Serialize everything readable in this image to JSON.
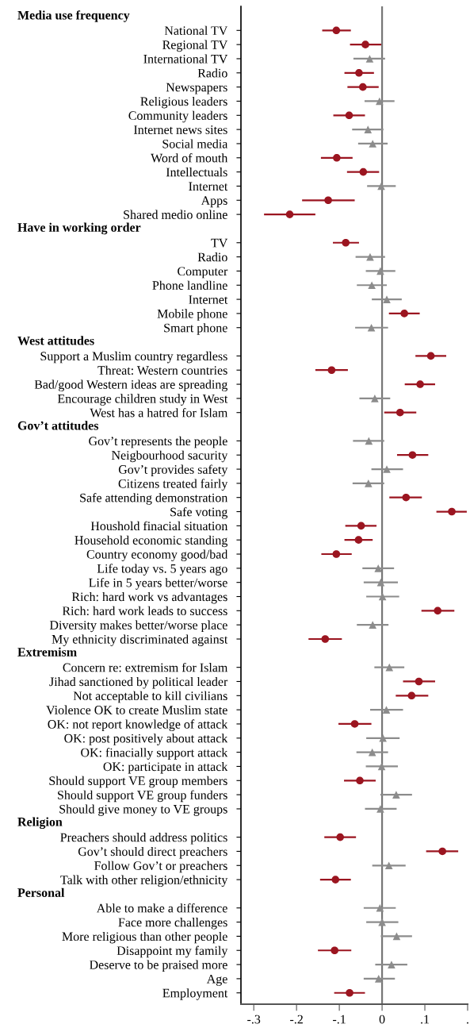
{
  "chart_data": {
    "type": "scatter",
    "orientation": "horizontal",
    "annotations": [
      "Media use frequency",
      "Have in working order",
      "West attitudes",
      "Gov’t attitudes",
      "Extremism",
      "Religion",
      "Personal"
    ],
    "categories": [
      null,
      "National TV",
      "Regional TV",
      "International TV",
      "Radio",
      "Newspapers",
      "Religious leaders",
      "Community leaders",
      "Internet news sites",
      "Social media",
      "Word of mouth",
      "Intellectuals",
      "Internet",
      "Apps",
      "Shared medio online",
      null,
      "TV",
      "Radio",
      "Computer",
      "Phone landline",
      "Internet",
      "Mobile phone",
      "Smart phone",
      null,
      "Support a Muslim country regardless",
      "Threat: Western countries",
      "Bad/good Western ideas are spreading",
      "Encourage children study in West",
      "West has a hatred for Islam",
      null,
      "Gov’t represents the people",
      "Neigbourhood sacurity",
      "Gov’t provides safety",
      "Citizens treated fairly",
      "Safe attending demonstration",
      "Safe voting",
      "Houshold finacial situation",
      "Household economic standing",
      "Country economy good/bad",
      "Life today vs. 5 years ago",
      "Life in 5 years better/worse",
      "Rich: hard work vs advantages",
      "Rich: hard work leads to success",
      "Diversity makes better/worse place",
      "My ethnicity discriminated against",
      null,
      "Concern re: extremism for Islam",
      "Jihad sanctioned by political leader",
      "Not acceptable to kill civilians",
      "Violence OK to create Muslim state",
      "OK: not report knowledge of attack",
      "OK: post positively about attack",
      "OK: finacially support attack",
      "OK: participate in attack",
      "Should support VE group members",
      "Should support VE group funders",
      "Should give money to VE groups",
      null,
      "Preachers should address politics",
      "Gov’t should direct preachers",
      "Follow Gov’t or preachers",
      "Talk with other religion/ethnicity",
      null,
      "Able to make a difference",
      "Face more challenges",
      "More religious than other people",
      "Disappoint my family",
      "Deserve to be praised more",
      "Age",
      "Employment"
    ],
    "series": [
      {
        "color": "#9b1520",
        "marker": "circle",
        "values": [
          null,
          -0.107,
          -0.039,
          null,
          -0.054,
          -0.045,
          null,
          -0.077,
          null,
          null,
          -0.106,
          -0.044,
          null,
          -0.126,
          -0.216,
          null,
          -0.085,
          null,
          null,
          null,
          null,
          0.052,
          null,
          null,
          0.114,
          -0.118,
          0.089,
          null,
          0.042,
          null,
          null,
          0.071,
          null,
          null,
          0.056,
          0.163,
          -0.049,
          -0.055,
          -0.107,
          null,
          null,
          null,
          0.13,
          null,
          -0.133,
          null,
          null,
          0.086,
          0.069,
          null,
          -0.064,
          null,
          null,
          null,
          -0.052,
          null,
          null,
          null,
          -0.098,
          0.141,
          null,
          -0.109,
          null,
          null,
          null,
          null,
          -0.111,
          null,
          null,
          -0.076
        ],
        "errors": [
          null,
          [
            -0.14,
            -0.073
          ],
          [
            -0.075,
            -0.002
          ],
          null,
          [
            -0.088,
            -0.019
          ],
          [
            -0.081,
            -0.008
          ],
          null,
          [
            -0.114,
            -0.04
          ],
          null,
          null,
          [
            -0.143,
            -0.069
          ],
          [
            -0.082,
            -0.007
          ],
          null,
          [
            -0.187,
            -0.064
          ],
          [
            -0.276,
            -0.156
          ],
          null,
          [
            -0.115,
            -0.054
          ],
          null,
          null,
          null,
          null,
          [
            0.016,
            0.088
          ],
          null,
          null,
          [
            0.078,
            0.15
          ],
          [
            -0.156,
            -0.08
          ],
          [
            0.053,
            0.124
          ],
          null,
          [
            0.005,
            0.08
          ],
          null,
          null,
          [
            0.035,
            0.108
          ],
          null,
          null,
          [
            0.017,
            0.093
          ],
          [
            0.127,
            0.198
          ],
          [
            -0.086,
            -0.013
          ],
          [
            -0.088,
            -0.022
          ],
          [
            -0.142,
            -0.071
          ],
          null,
          null,
          null,
          [
            0.092,
            0.169
          ],
          null,
          [
            -0.172,
            -0.094
          ],
          null,
          null,
          [
            0.049,
            0.124
          ],
          [
            0.032,
            0.108
          ],
          null,
          [
            -0.102,
            -0.025
          ],
          null,
          null,
          null,
          [
            -0.089,
            -0.015
          ],
          null,
          null,
          null,
          [
            -0.135,
            -0.061
          ],
          [
            0.103,
            0.178
          ],
          null,
          [
            -0.145,
            -0.073
          ],
          null,
          null,
          null,
          null,
          [
            -0.15,
            -0.072
          ],
          null,
          null,
          [
            -0.112,
            -0.04
          ]
        ]
      },
      {
        "color": "#8c8c8c",
        "marker": "triangle",
        "values": [
          null,
          null,
          null,
          -0.029,
          null,
          null,
          -0.006,
          null,
          -0.033,
          -0.022,
          null,
          null,
          -0.002,
          null,
          null,
          null,
          null,
          -0.028,
          -0.004,
          -0.024,
          0.011,
          null,
          -0.025,
          null,
          null,
          null,
          null,
          -0.017,
          null,
          null,
          -0.031,
          null,
          0.011,
          -0.032,
          null,
          null,
          null,
          null,
          null,
          -0.009,
          -0.003,
          0.001,
          null,
          -0.022,
          null,
          null,
          0.017,
          null,
          null,
          0.01,
          null,
          0.002,
          -0.023,
          -0.001,
          null,
          0.033,
          -0.004,
          null,
          null,
          null,
          0.016,
          null,
          null,
          -0.005,
          0.0,
          0.034,
          null,
          0.022,
          -0.008,
          null
        ],
        "errors": [
          null,
          null,
          null,
          [
            -0.067,
            0.007
          ],
          null,
          null,
          [
            -0.041,
            0.029
          ],
          null,
          [
            -0.07,
            0.003
          ],
          [
            -0.056,
            0.013
          ],
          null,
          null,
          [
            -0.035,
            0.032
          ],
          null,
          null,
          null,
          null,
          [
            -0.062,
            0.007
          ],
          [
            -0.038,
            0.031
          ],
          [
            -0.059,
            0.011
          ],
          [
            -0.024,
            0.046
          ],
          null,
          [
            -0.063,
            0.014
          ],
          null,
          null,
          null,
          null,
          [
            -0.053,
            0.019
          ],
          null,
          null,
          [
            -0.068,
            0.005
          ],
          null,
          [
            -0.025,
            0.049
          ],
          [
            -0.069,
            0.005
          ],
          null,
          null,
          null,
          null,
          null,
          [
            -0.046,
            0.028
          ],
          [
            -0.043,
            0.037
          ],
          [
            -0.037,
            0.04
          ],
          null,
          [
            -0.059,
            0.015
          ],
          null,
          null,
          [
            -0.018,
            0.052
          ],
          null,
          null,
          [
            -0.028,
            0.049
          ],
          null,
          [
            -0.037,
            0.041
          ],
          [
            -0.06,
            0.014
          ],
          [
            -0.038,
            0.037
          ],
          null,
          [
            -0.004,
            0.07
          ],
          [
            -0.04,
            0.034
          ],
          null,
          null,
          null,
          [
            -0.023,
            0.055
          ],
          null,
          null,
          [
            -0.043,
            0.032
          ],
          [
            -0.037,
            0.038
          ],
          [
            -0.003,
            0.07
          ],
          null,
          [
            -0.016,
            0.059
          ],
          [
            -0.043,
            0.03
          ],
          null
        ]
      }
    ],
    "xlim": [
      -0.33,
      0.2
    ],
    "xticks": [
      {
        "value": -0.3,
        "label": "-.3"
      },
      {
        "value": -0.2,
        "label": "-.2"
      },
      {
        "value": -0.1,
        "label": "-.1"
      },
      0,
      {
        "value": 0.1,
        "label": ".1"
      },
      {
        "value": 0.2,
        "label": "."
      }
    ],
    "ref_lines": [
      {
        "axis": "x",
        "value": 0,
        "color": "#777777"
      }
    ]
  }
}
